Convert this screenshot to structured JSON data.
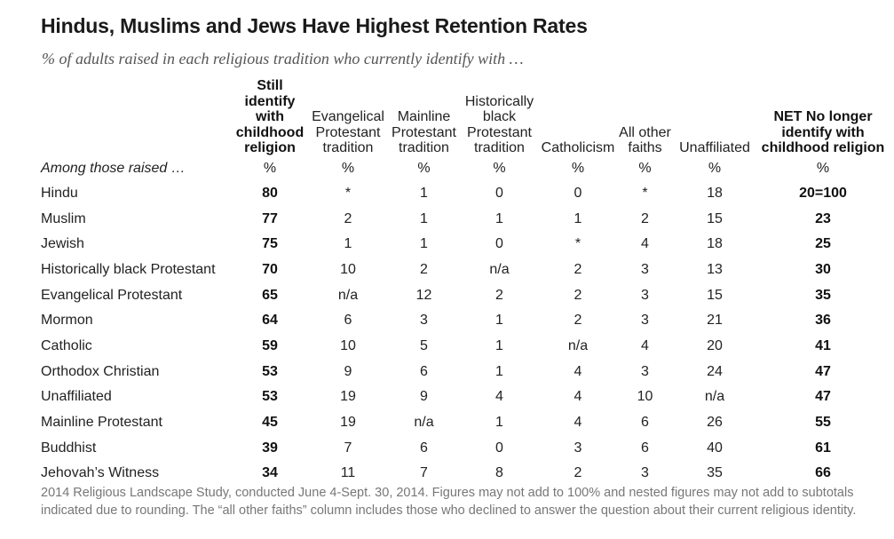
{
  "title": "Hindus, Muslims and Jews Have Highest Retention Rates",
  "subtitle": "% of adults raised in each religious tradition who currently identify with …",
  "chart_data": {
    "type": "table",
    "columns": [
      "Still identify with childhood religion",
      "Evangelical Protestant tradition",
      "Mainline Protestant tradition",
      "Historically black Protestant tradition",
      "Catholicism",
      "All other faiths",
      "Unaffiliated",
      "NET No longer identify with childhood religion"
    ],
    "row_header_label": "Among those raised …",
    "units": [
      "%",
      "%",
      "%",
      "%",
      "%",
      "%",
      "%",
      "%"
    ],
    "rows": [
      {
        "label": "Hindu",
        "values": [
          "80",
          "*",
          "1",
          "0",
          "0",
          "*",
          "18",
          "20=100"
        ]
      },
      {
        "label": "Muslim",
        "values": [
          "77",
          "2",
          "1",
          "1",
          "1",
          "2",
          "15",
          "23"
        ]
      },
      {
        "label": "Jewish",
        "values": [
          "75",
          "1",
          "1",
          "0",
          "*",
          "4",
          "18",
          "25"
        ]
      },
      {
        "label": "Historically black Protestant",
        "values": [
          "70",
          "10",
          "2",
          "n/a",
          "2",
          "3",
          "13",
          "30"
        ]
      },
      {
        "label": "Evangelical Protestant",
        "values": [
          "65",
          "n/a",
          "12",
          "2",
          "2",
          "3",
          "15",
          "35"
        ]
      },
      {
        "label": "Mormon",
        "values": [
          "64",
          "6",
          "3",
          "1",
          "2",
          "3",
          "21",
          "36"
        ]
      },
      {
        "label": "Catholic",
        "values": [
          "59",
          "10",
          "5",
          "1",
          "n/a",
          "4",
          "20",
          "41"
        ]
      },
      {
        "label": "Orthodox Christian",
        "values": [
          "53",
          "9",
          "6",
          "1",
          "4",
          "3",
          "24",
          "47"
        ]
      },
      {
        "label": "Unaffiliated",
        "values": [
          "53",
          "19",
          "9",
          "4",
          "4",
          "10",
          "n/a",
          "47"
        ]
      },
      {
        "label": "Mainline Protestant",
        "values": [
          "45",
          "19",
          "n/a",
          "1",
          "4",
          "6",
          "26",
          "55"
        ]
      },
      {
        "label": "Buddhist",
        "values": [
          "39",
          "7",
          "6",
          "0",
          "3",
          "6",
          "40",
          "61"
        ]
      },
      {
        "label": "Jehovah’s Witness",
        "values": [
          "34",
          "11",
          "7",
          "8",
          "2",
          "3",
          "35",
          "66"
        ]
      }
    ]
  },
  "note": "2014 Religious Landscape Study, conducted June 4-Sept. 30, 2014. Figures may not add to 100% and nested figures may not add to subtotals indicated due to rounding. The “all other faiths” column includes those who declined to answer the question about their current religious identity."
}
